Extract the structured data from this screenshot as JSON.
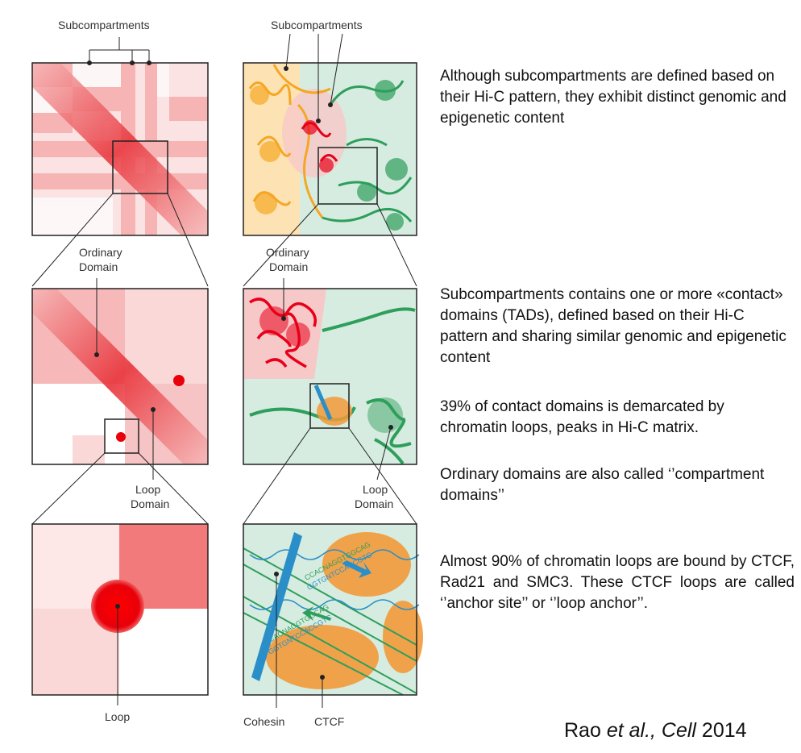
{
  "labels": {
    "subcompartments_left": "Subcompartments",
    "subcompartments_right": "Subcompartments",
    "ordinary_domain_left_l1": "Ordinary",
    "ordinary_domain_left_l2": "Domain",
    "ordinary_domain_right_l1": "Ordinary",
    "ordinary_domain_right_l2": "Domain",
    "loop_domain_left_l1": "Loop",
    "loop_domain_left_l2": "Domain",
    "loop_domain_right_l1": "Loop",
    "loop_domain_right_l2": "Domain",
    "loop": "Loop",
    "cohesin": "Cohesin",
    "ctcf": "CTCF",
    "dna_seq_1": "CCACNAGGTGGCAG",
    "dna_seq_2": "GGTGNTCCACCGTC"
  },
  "descriptions": {
    "p1": "Although subcompartments are defined based on their Hi-C pattern, they exhibit distinct genomic and epigenetic content",
    "p2": "Subcompartments contains one or more «contact» domains (TADs), defined based on their Hi-C pattern and sharing similar genomic and epigenetic content",
    "p3": "39% of contact domains is demarcated by chromatin loops, peaks in Hi-C matrix.",
    "p4": "Ordinary domains are also called ‘’compartment domains’’",
    "p5": "Almost 90% of chromatin loops are bound by CTCF, Rad21 and SMC3. These CTCF loops are called ‘’anchor site’’ or ‘’loop anchor’’."
  },
  "citation": {
    "author": "Rao ",
    "etal": "et al., ",
    "journal": "Cell",
    "year": " 2014"
  },
  "colors": {
    "hic_red": "#e8333a",
    "hic_pink": "#f9d3d3",
    "dot_red": "#e8000a",
    "green_bg": "#d6ece0",
    "green_strand": "#2e9e5b",
    "yellow_bg": "#fde3b3",
    "orange_strand": "#f5a623",
    "cohesin_blue": "#2a8fc8",
    "ctcf_orange": "#f29a3a"
  }
}
